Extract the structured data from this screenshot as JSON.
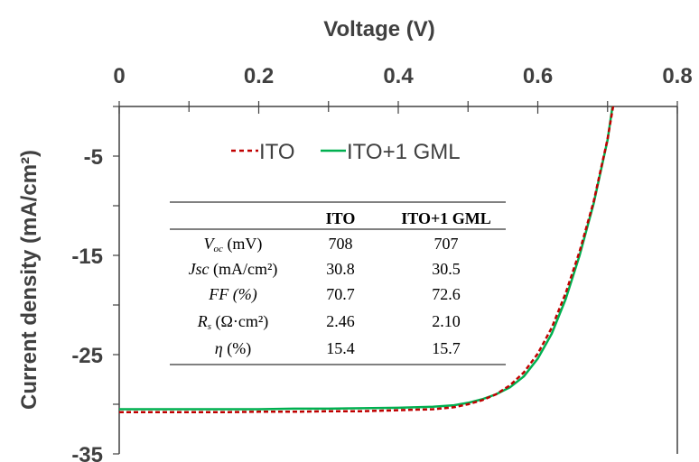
{
  "chart_data": {
    "type": "line",
    "xlabel": "Voltage (V)",
    "ylabel": "Current density (mA/cm²)",
    "xlim": [
      0,
      0.8
    ],
    "ylim": [
      -35,
      0
    ],
    "x_ticks": [
      "0",
      "0.2",
      "0.4",
      "0.6",
      "0.8"
    ],
    "y_ticks": [
      "-5",
      "-15",
      "-25",
      "-35"
    ],
    "legend_position": "top",
    "series": [
      {
        "name": "ITO",
        "color": "#c00000",
        "style": "dashed",
        "x": [
          0,
          0.05,
          0.1,
          0.15,
          0.2,
          0.25,
          0.3,
          0.35,
          0.4,
          0.45,
          0.48,
          0.5,
          0.52,
          0.54,
          0.56,
          0.58,
          0.6,
          0.62,
          0.64,
          0.66,
          0.68,
          0.7,
          0.708
        ],
        "y": [
          -30.8,
          -30.8,
          -30.8,
          -30.8,
          -30.75,
          -30.75,
          -30.7,
          -30.7,
          -30.6,
          -30.5,
          -30.3,
          -30.0,
          -29.6,
          -29.0,
          -28.1,
          -26.8,
          -24.9,
          -22.3,
          -18.8,
          -14.6,
          -9.6,
          -3.3,
          0
        ]
      },
      {
        "name": "ITO+1 GML",
        "color": "#00b050",
        "style": "solid",
        "x": [
          0,
          0.05,
          0.1,
          0.15,
          0.2,
          0.25,
          0.3,
          0.35,
          0.4,
          0.45,
          0.48,
          0.5,
          0.52,
          0.54,
          0.56,
          0.58,
          0.6,
          0.62,
          0.64,
          0.66,
          0.68,
          0.7,
          0.707
        ],
        "y": [
          -30.5,
          -30.5,
          -30.5,
          -30.5,
          -30.5,
          -30.45,
          -30.45,
          -30.4,
          -30.35,
          -30.25,
          -30.1,
          -29.85,
          -29.5,
          -29.0,
          -28.3,
          -27.2,
          -25.4,
          -22.9,
          -19.4,
          -15.0,
          -9.8,
          -3.4,
          0
        ]
      }
    ],
    "table": {
      "columns": [
        "",
        "ITO",
        "ITO+1 GML"
      ],
      "rows": [
        {
          "label": "Voc",
          "label_sub": "oc",
          "label_main": "V",
          "unit": " (mV)",
          "ito": "708",
          "gml": "707"
        },
        {
          "label": "Jsc",
          "label_main": "Jsc",
          "unit": " (mA/cm²)",
          "ito": "30.8",
          "gml": "30.5"
        },
        {
          "label": "FF",
          "label_main": "FF (%)",
          "unit": "",
          "ito": "70.7",
          "gml": "72.6"
        },
        {
          "label": "Rs",
          "label_main": "R",
          "label_sub": "s",
          "unit": " (Ω·cm²)",
          "ito": "2.46",
          "gml": "2.10"
        },
        {
          "label": "η",
          "label_main": "η",
          "unit": " (%)",
          "ito": "15.4",
          "gml": "15.7"
        }
      ]
    }
  }
}
